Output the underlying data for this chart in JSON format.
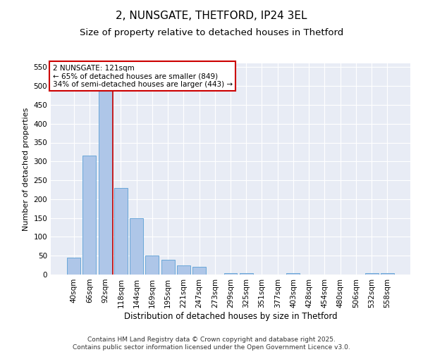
{
  "title1": "2, NUNSGATE, THETFORD, IP24 3EL",
  "title2": "Size of property relative to detached houses in Thetford",
  "xlabel": "Distribution of detached houses by size in Thetford",
  "ylabel": "Number of detached properties",
  "categories": [
    "40sqm",
    "66sqm",
    "92sqm",
    "118sqm",
    "144sqm",
    "169sqm",
    "195sqm",
    "221sqm",
    "247sqm",
    "273sqm",
    "299sqm",
    "325sqm",
    "351sqm",
    "377sqm",
    "403sqm",
    "428sqm",
    "454sqm",
    "480sqm",
    "506sqm",
    "532sqm",
    "558sqm"
  ],
  "values": [
    45,
    315,
    490,
    230,
    150,
    50,
    40,
    25,
    20,
    0,
    3,
    4,
    0,
    0,
    3,
    0,
    0,
    0,
    0,
    3,
    3
  ],
  "bar_color": "#aec6e8",
  "bar_edge_color": "#5a9fd4",
  "vline_color": "#cc0000",
  "vline_pos": 2.5,
  "annotation_text": "2 NUNSGATE: 121sqm\n← 65% of detached houses are smaller (849)\n34% of semi-detached houses are larger (443) →",
  "annotation_box_color": "#ffffff",
  "annotation_edge_color": "#cc0000",
  "ylim": [
    0,
    560
  ],
  "yticks": [
    0,
    50,
    100,
    150,
    200,
    250,
    300,
    350,
    400,
    450,
    500,
    550
  ],
  "background_color": "#e8ecf5",
  "plot_bg_color": "#e8ecf5",
  "footer_text": "Contains HM Land Registry data © Crown copyright and database right 2025.\nContains public sector information licensed under the Open Government Licence v3.0.",
  "title1_fontsize": 11,
  "title2_fontsize": 9.5,
  "xlabel_fontsize": 8.5,
  "ylabel_fontsize": 8,
  "tick_fontsize": 7.5,
  "annotation_fontsize": 7.5,
  "footer_fontsize": 6.5
}
